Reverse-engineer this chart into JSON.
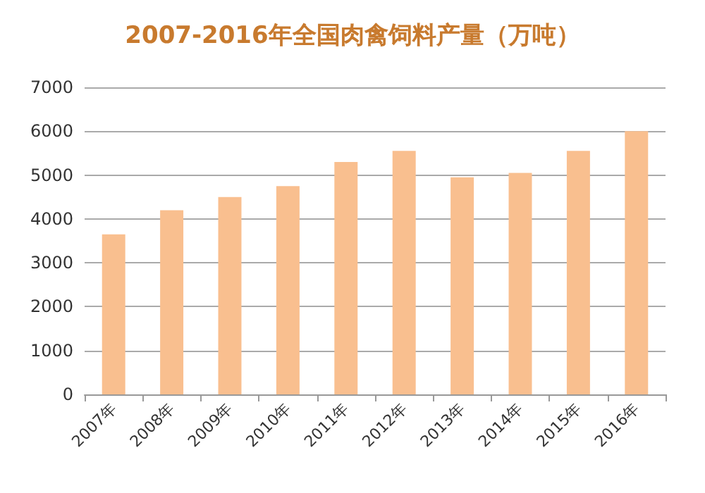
{
  "chart_data": {
    "type": "bar",
    "title": "2007-2016年全国肉禽饲料产量（万吨）",
    "categories": [
      "2007年",
      "2008年",
      "2009年",
      "2010年",
      "2011年",
      "2012年",
      "2013年",
      "2014年",
      "2015年",
      "2016年"
    ],
    "values": [
      3650,
      4200,
      4500,
      4750,
      5300,
      5550,
      4950,
      5050,
      5550,
      6000
    ],
    "color": "#f9bf8f",
    "ylim": [
      0,
      7000
    ],
    "yticks": [
      0,
      1000,
      2000,
      3000,
      4000,
      5000,
      6000,
      7000
    ],
    "grid": "y"
  }
}
